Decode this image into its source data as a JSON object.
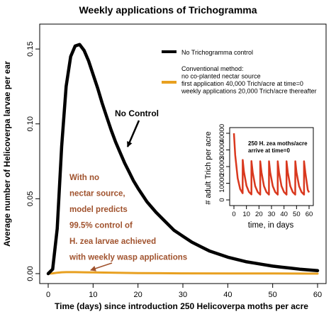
{
  "chart_data": [
    {
      "type": "line",
      "title": "Weekly applications of Trichogramma",
      "xlabel": "Time (days) since introduction 250 Helicoverpa moths per acre",
      "ylabel": "Average number of Helicoverpa larvae per ear",
      "xlim": [
        0,
        60
      ],
      "ylim": [
        0,
        0.16
      ],
      "xticks": [
        "0",
        "10",
        "20",
        "30",
        "40",
        "50",
        "60"
      ],
      "yticks": [
        "0.00",
        "0.05",
        "0.10",
        "0.15"
      ],
      "grid": false,
      "legend_position": "top-right",
      "series": [
        {
          "name": "No Trichogramma control",
          "color": "#000000",
          "x": [
            0,
            1,
            2,
            3,
            4,
            5,
            6,
            7,
            8,
            9,
            10,
            11,
            12,
            13,
            14,
            15,
            16,
            17,
            18,
            19,
            20,
            22,
            24,
            26,
            28,
            30,
            32,
            34,
            36,
            38,
            40,
            42,
            44,
            46,
            48,
            50,
            52,
            54,
            56,
            58,
            60
          ],
          "y": [
            0.0,
            0.003,
            0.03,
            0.085,
            0.125,
            0.145,
            0.152,
            0.153,
            0.149,
            0.142,
            0.133,
            0.124,
            0.114,
            0.105,
            0.096,
            0.088,
            0.081,
            0.074,
            0.068,
            0.062,
            0.057,
            0.048,
            0.041,
            0.035,
            0.029,
            0.025,
            0.021,
            0.018,
            0.015,
            0.013,
            0.011,
            0.0095,
            0.008,
            0.007,
            0.006,
            0.005,
            0.0043,
            0.0037,
            0.003,
            0.0025,
            0.002
          ]
        },
        {
          "name": "Conventional method:\nno co-planted nectar source\nfirst application 40,000 Trich/acre at time=0\nweekly applications 20,000 Trich/acre thereafter",
          "color": "#E8A020",
          "x": [
            0,
            1,
            2,
            3,
            4,
            5,
            6,
            8,
            10,
            15,
            20,
            25,
            30,
            40,
            50,
            60
          ],
          "y": [
            0.0,
            0.0002,
            0.0006,
            0.0009,
            0.001,
            0.001,
            0.001,
            0.0009,
            0.0008,
            0.0006,
            0.0004,
            0.0003,
            0.0002,
            0.0001,
            0.0001,
            0.0
          ]
        }
      ],
      "annotations": {
        "no_control": "No Control",
        "prediction": [
          "With no",
          "nectar source,",
          "model predicts",
          "99.5% control of",
          "H. zea larvae achieved",
          "with weekly wasp applications"
        ]
      },
      "annotation_colors": {
        "prediction": "#A0522D"
      }
    },
    {
      "type": "line",
      "title": "",
      "xlabel": "time, in days",
      "ylabel": "# adult Trich per acre",
      "xlim": [
        0,
        60
      ],
      "ylim": [
        0,
        40000
      ],
      "xticks": [
        "0",
        "10",
        "20",
        "30",
        "40",
        "50",
        "60"
      ],
      "yticks": [
        "0",
        "10000",
        "20000",
        "30000",
        "40000"
      ],
      "annotation": [
        "250 H. zea moths/acre",
        "arrive at time=0"
      ],
      "series": [
        {
          "color": "#D9381E",
          "x": [
            0,
            1,
            3,
            5,
            6.99,
            7,
            8,
            10,
            12,
            13.99,
            14,
            15,
            17,
            19,
            20.99,
            21,
            22,
            24,
            26,
            27.99,
            28,
            29,
            31,
            33,
            34.99,
            35,
            36,
            38,
            40,
            41.99,
            42,
            43,
            45,
            47,
            48.99,
            49,
            50,
            52,
            54,
            55.99,
            56,
            57,
            59,
            60
          ],
          "y": [
            40000,
            27000,
            13000,
            6500,
            4000,
            24000,
            17000,
            8500,
            4800,
            3300,
            23300,
            16500,
            8300,
            4700,
            3200,
            23200,
            16500,
            8300,
            4700,
            3200,
            23200,
            16500,
            8300,
            4700,
            3200,
            23200,
            16500,
            8300,
            4700,
            3200,
            23200,
            16500,
            8300,
            4700,
            3200,
            23200,
            16500,
            8300,
            4700,
            3200,
            23200,
            16500,
            6000,
            4500
          ]
        }
      ]
    }
  ]
}
